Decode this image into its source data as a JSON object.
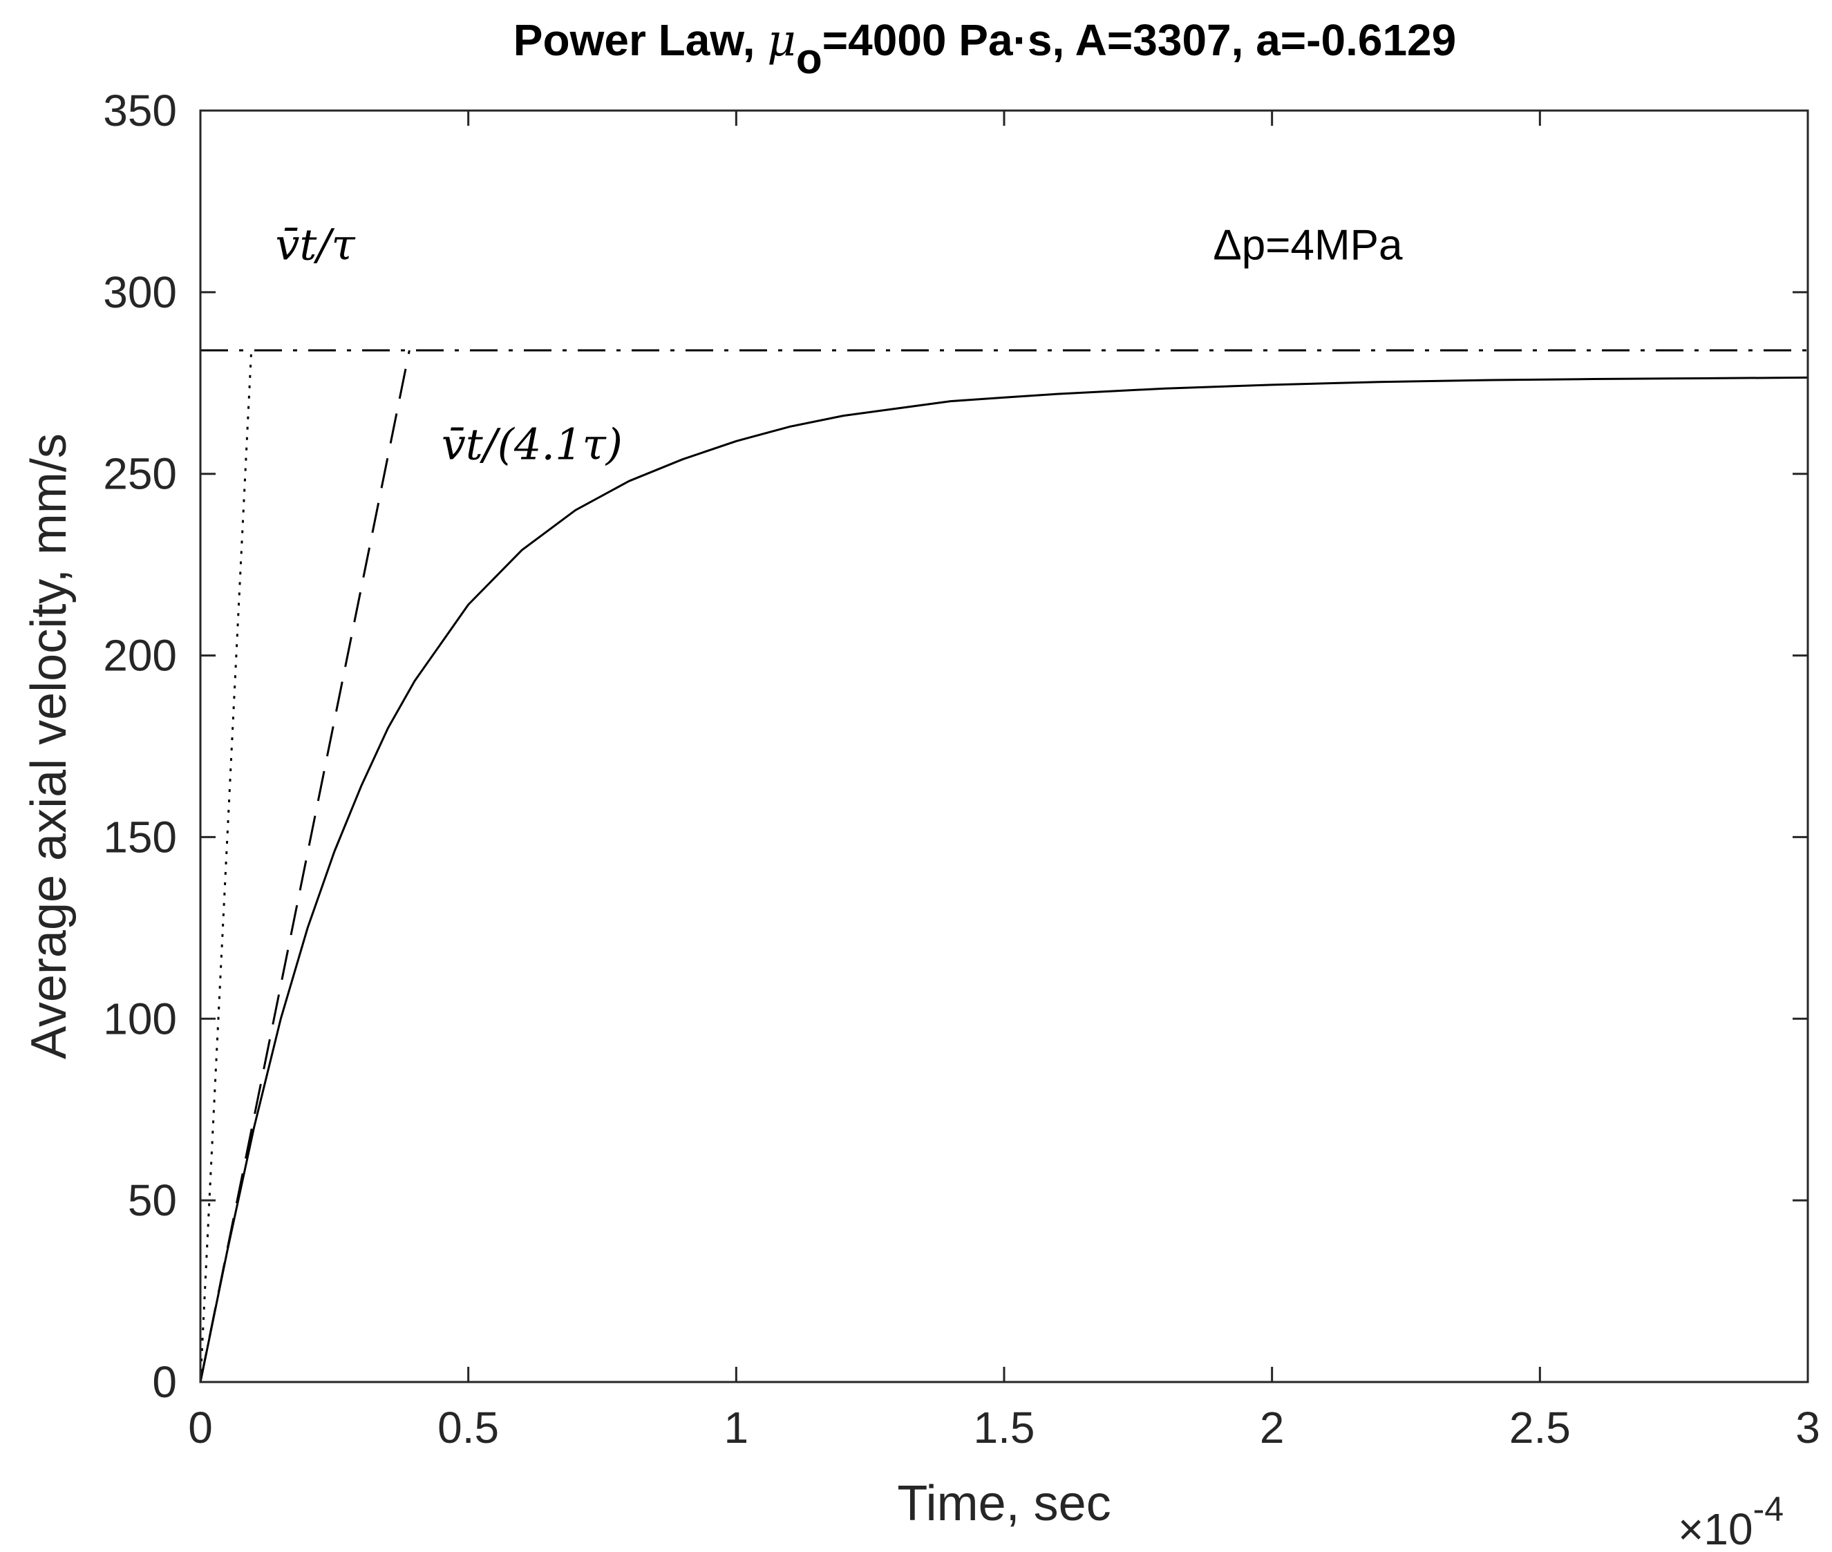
{
  "chart_data": {
    "type": "line",
    "title": {
      "prefix": "Power Law, ",
      "mu_symbol": "μ",
      "mu_subscript": "o",
      "suffix": "=4000 Pa·s, A=3307, a=-0.6129"
    },
    "xlabel": "Time, sec",
    "ylabel": "Average axial velocity, mm/s",
    "x_multiplier": {
      "base": "×10",
      "exponent": "-4"
    },
    "xlim": [
      0,
      0.0003
    ],
    "ylim": [
      0,
      350
    ],
    "x_ticks": [
      {
        "value": 0,
        "label": "0"
      },
      {
        "value": 5e-05,
        "label": "0.5"
      },
      {
        "value": 0.0001,
        "label": "1"
      },
      {
        "value": 0.00015,
        "label": "1.5"
      },
      {
        "value": 0.0002,
        "label": "2"
      },
      {
        "value": 0.00025,
        "label": "2.5"
      },
      {
        "value": 0.0003,
        "label": "3"
      }
    ],
    "y_ticks": [
      {
        "value": 0,
        "label": "0"
      },
      {
        "value": 50,
        "label": "50"
      },
      {
        "value": 100,
        "label": "100"
      },
      {
        "value": 150,
        "label": "150"
      },
      {
        "value": 200,
        "label": "200"
      },
      {
        "value": 250,
        "label": "250"
      },
      {
        "value": 300,
        "label": "300"
      },
      {
        "value": 350,
        "label": "350"
      }
    ],
    "grid": false,
    "series": [
      {
        "style": "solid",
        "color": "#000000",
        "x": [
          0,
          5e-06,
          1e-05,
          1.5e-05,
          2e-05,
          2.5e-05,
          3e-05,
          3.5e-05,
          4e-05,
          5e-05,
          6e-05,
          7e-05,
          8e-05,
          9e-05,
          0.0001,
          0.00011,
          0.00012,
          0.00013,
          0.00014,
          0.00015,
          0.00016,
          0.00018,
          0.0002,
          0.00022,
          0.00024,
          0.00026,
          0.00028,
          0.0003
        ],
        "y": [
          0,
          36,
          70,
          100,
          125,
          146,
          164,
          180,
          193,
          214,
          229,
          240,
          248,
          254,
          259,
          263,
          266,
          268,
          270,
          271,
          272,
          273.5,
          274.5,
          275.3,
          275.8,
          276.1,
          276.3,
          276.5
        ]
      },
      {
        "style": "dashed",
        "color": "#000000",
        "x": [
          0,
          3.9e-05
        ],
        "y": [
          0,
          284
        ]
      },
      {
        "style": "dotted",
        "color": "#000000",
        "x": [
          0,
          9.5e-06
        ],
        "y": [
          0,
          284
        ]
      },
      {
        "style": "dashdot",
        "color": "#000000",
        "x": [
          0,
          0.0003
        ],
        "y": [
          284,
          284
        ]
      }
    ],
    "annotations": [
      {
        "id": "vt-tau",
        "text": "v̄t/τ",
        "x": 1.4e-05,
        "y": 309
      },
      {
        "id": "vt-41tau",
        "text": "v̄t/(4.1τ)",
        "x": 4.5e-05,
        "y": 254
      },
      {
        "id": "delta-p",
        "text": "Δp=4MPa",
        "x": 0.000189,
        "y": 309
      }
    ]
  }
}
